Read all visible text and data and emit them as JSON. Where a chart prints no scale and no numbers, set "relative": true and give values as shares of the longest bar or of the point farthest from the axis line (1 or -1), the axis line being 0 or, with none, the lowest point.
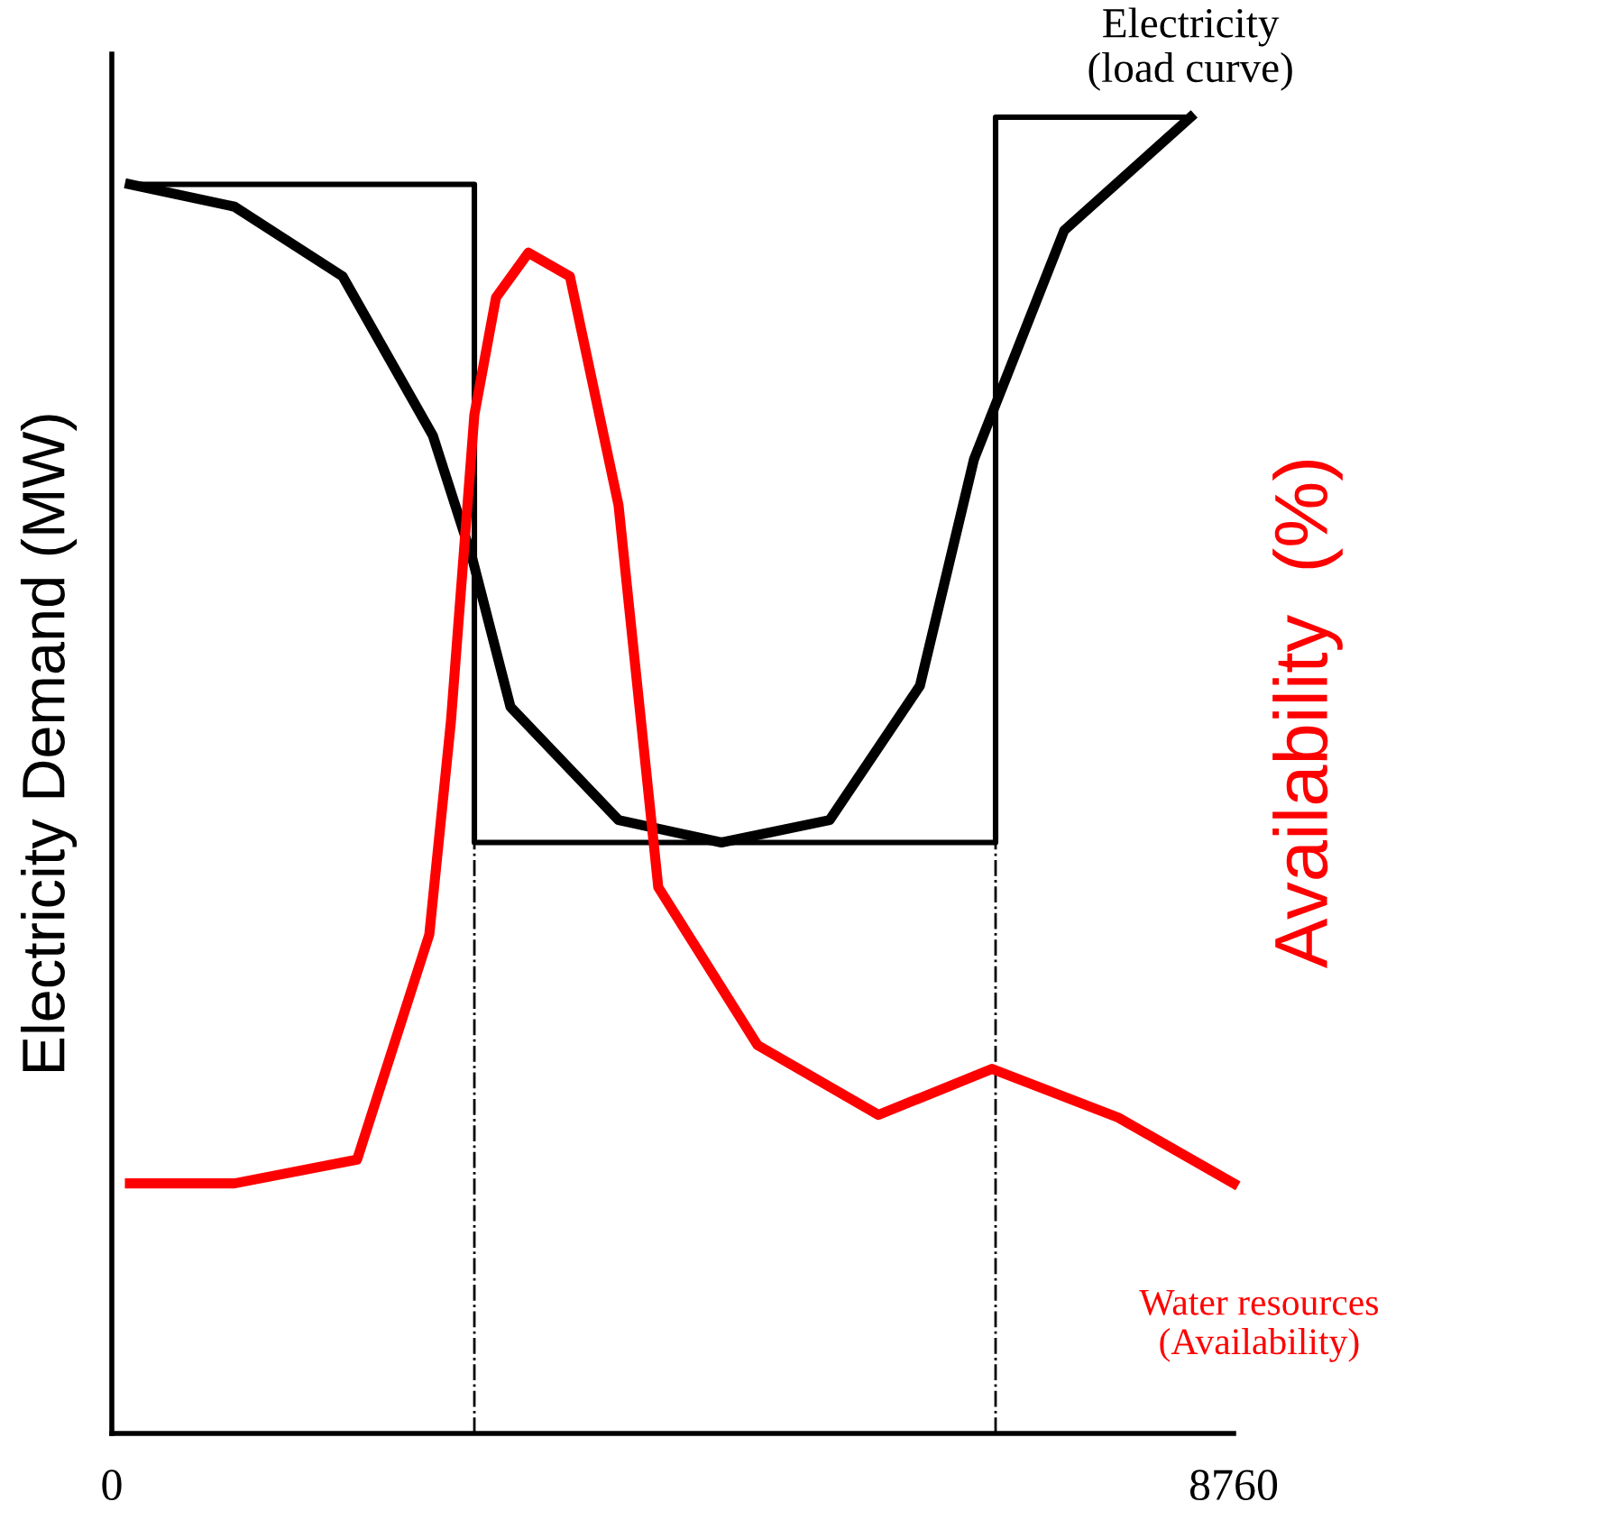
{
  "chart_data": {
    "type": "line",
    "relative": true,
    "ylabel": "Electricity Demand (MW)",
    "y2label": "Availability  (%)",
    "xlim": [
      0,
      8760
    ],
    "xticks": [
      0,
      8760
    ],
    "grid": false,
    "marker": "none",
    "line_style": "solid",
    "series": [
      {
        "name": "Electricity\n(load curve)",
        "color": "#000000",
        "x": [
          141,
          958,
          1803,
          2507,
          2817,
          3113,
          3957,
          4760,
          5605,
          6310,
          6732,
          7437,
          8423
        ],
        "values": [
          0.949,
          0.932,
          0.879,
          0.758,
          0.664,
          0.552,
          0.466,
          0.449,
          0.466,
          0.568,
          0.74,
          0.914,
          1.0
        ]
      },
      {
        "type": "step",
        "color": "#000000",
        "x": [
          141,
          2831,
          6901,
          8423
        ],
        "values": [
          0.949,
          0.449,
          1.0,
          1.0
        ]
      },
      {
        "name": "Water resources\n(Availability)",
        "color": "#ff0000",
        "axis": "y2",
        "x": [
          141,
          958,
          1915,
          2479,
          2648,
          2831,
          3000,
          3253,
          3577,
          3957,
          4267,
          5042,
          5986,
          6873,
          7859,
          8760
        ],
        "values": [
          0.19,
          0.19,
          0.208,
          0.379,
          0.541,
          0.774,
          0.863,
          0.897,
          0.879,
          0.705,
          0.415,
          0.295,
          0.242,
          0.277,
          0.24,
          0.19
        ]
      }
    ],
    "ref_lines": [
      {
        "axis": "x",
        "value": 2831,
        "line_style": "dashed",
        "color": "#000000"
      },
      {
        "axis": "x",
        "value": 6901,
        "line_style": "dashed",
        "color": "#000000"
      }
    ]
  }
}
